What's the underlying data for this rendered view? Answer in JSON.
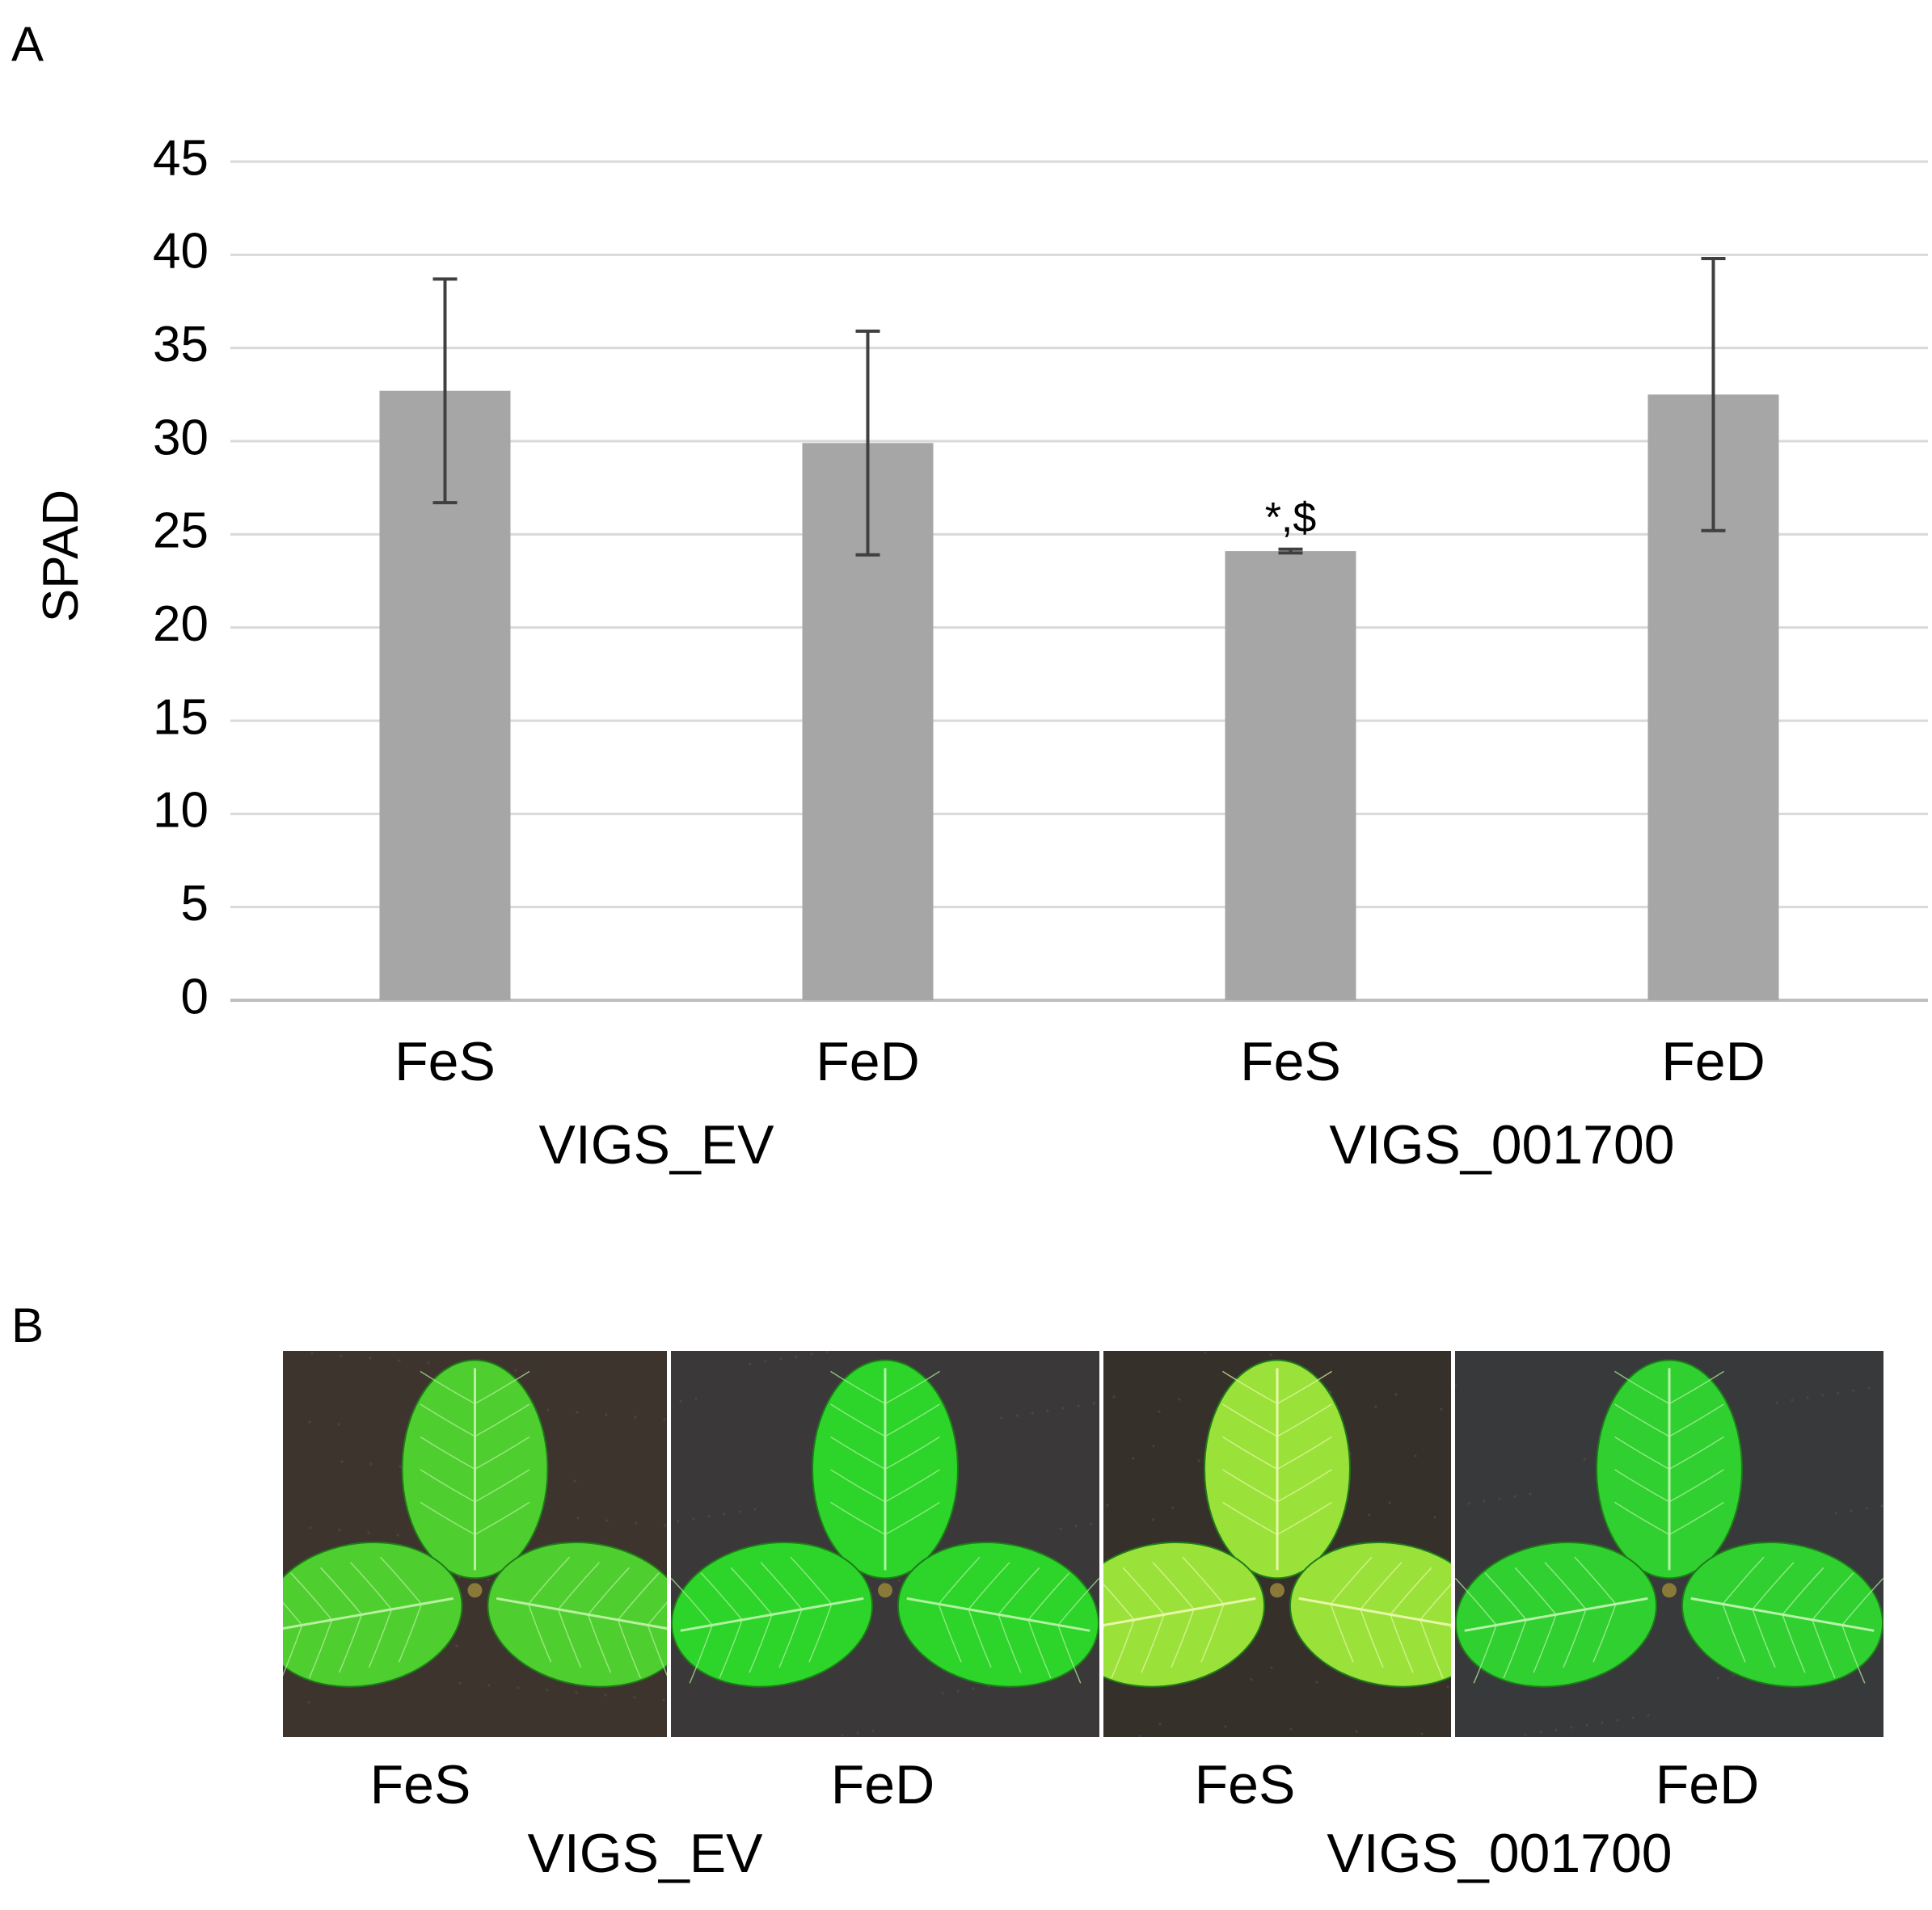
{
  "panel_a_letter": "A",
  "panel_b_letter": "B",
  "chart_data": {
    "type": "bar",
    "categories": [
      "FeS",
      "FeD",
      "FeS",
      "FeD"
    ],
    "groups": [
      {
        "label": "VIGS_EV",
        "categories": [
          0,
          1
        ]
      },
      {
        "label": "VIGS_001700",
        "categories": [
          2,
          3
        ]
      }
    ],
    "values": [
      32.7,
      29.9,
      24.1,
      32.5
    ],
    "error_low": [
      26.7,
      23.9,
      24.0,
      25.2
    ],
    "error_high": [
      38.7,
      35.9,
      24.2,
      39.8
    ],
    "annotations": [
      "",
      "",
      "*,$",
      ""
    ],
    "ylabel": "SPAD",
    "xlabel": "",
    "ylim": [
      0,
      45
    ],
    "yticks": [
      0,
      5,
      10,
      15,
      20,
      25,
      30,
      35,
      40,
      45
    ],
    "grid": true,
    "bar_color": "#a6a6a6",
    "error_color": "#404040",
    "grid_color": "#d9d9d9"
  },
  "panel_b": {
    "photos": [
      {
        "name": "photo-vigs-ev-fes",
        "background": "#3d342d",
        "leaf_color": "#4fcf2f",
        "vein_color": "#b8f0a0"
      },
      {
        "name": "photo-vigs-ev-fed",
        "background": "#3a3838",
        "leaf_color": "#2dd42a",
        "vein_color": "#b0f2a0"
      },
      {
        "name": "photo-vigs-001700-fes",
        "background": "#36302b",
        "leaf_color": "#9ae23a",
        "vein_color": "#e8f7a8"
      },
      {
        "name": "photo-vigs-001700-fed",
        "background": "#38393a",
        "leaf_color": "#2fd030",
        "vein_color": "#b8f2a8"
      }
    ],
    "labels": [
      "FeS",
      "FeD",
      "FeS",
      "FeD"
    ],
    "groups": [
      "VIGS_EV",
      "VIGS_001700"
    ]
  }
}
